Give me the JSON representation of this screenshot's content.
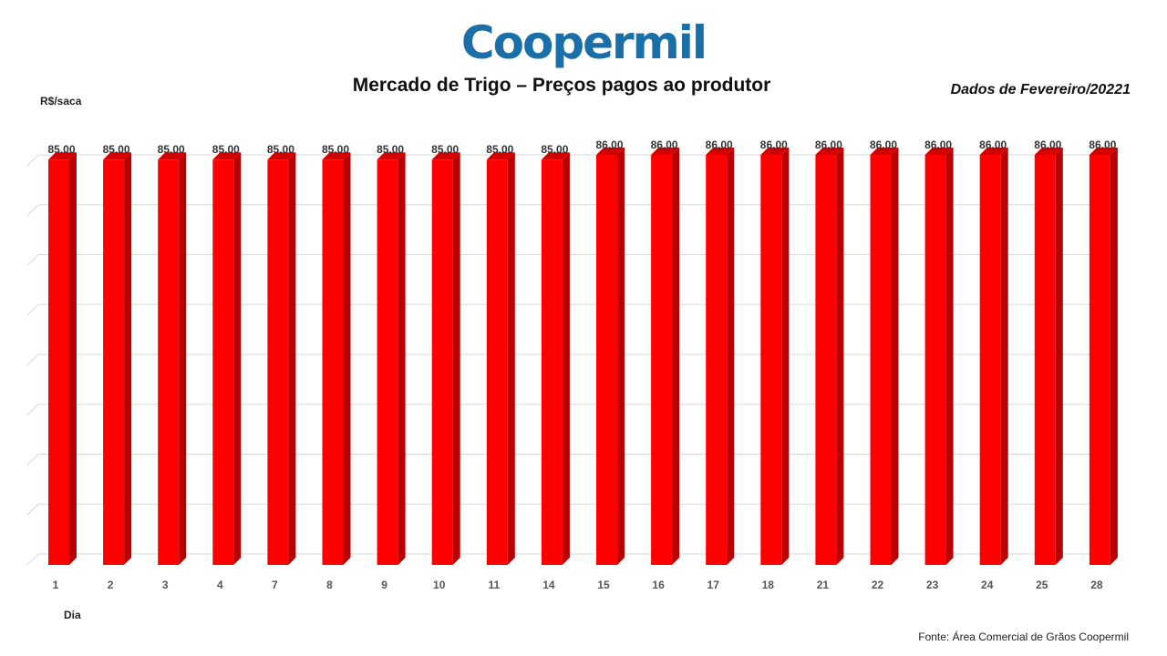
{
  "logo": {
    "text": "Coopermil"
  },
  "header": {
    "title": "Mercado de Trigo – Preços pagos ao produtor",
    "date_note": "Dados de Fevereiro/20221"
  },
  "footer": {
    "source": "Fonte:  Área Comercial de Grãos Coopermil"
  },
  "colors": {
    "bar_front": "#ff0000",
    "bar_side": "#b80000",
    "bar_top": "#d40000",
    "grid": "#d9d9d9"
  },
  "chart_data": {
    "type": "bar",
    "ylabel": "R$/saca",
    "xlabel": "Dia",
    "categories": [
      "1",
      "2",
      "3",
      "4",
      "7",
      "8",
      "9",
      "10",
      "11",
      "14",
      "15",
      "16",
      "17",
      "18",
      "21",
      "22",
      "23",
      "24",
      "25",
      "28"
    ],
    "values": [
      85,
      85,
      85,
      85,
      85,
      85,
      85,
      85,
      85,
      85,
      86,
      86,
      86,
      86,
      86,
      86,
      86,
      86,
      86,
      86
    ],
    "data_labels": [
      "85,00",
      "85,00",
      "85,00",
      "85,00",
      "85,00",
      "85,00",
      "85,00",
      "85,00",
      "85,00",
      "85,00",
      "86,00",
      "86,00",
      "86,00",
      "86,00",
      "86,00",
      "86,00",
      "86,00",
      "86,00",
      "86,00",
      "86,00"
    ],
    "ylim": [
      0,
      86
    ],
    "grid": true,
    "bar_style": "3d"
  }
}
